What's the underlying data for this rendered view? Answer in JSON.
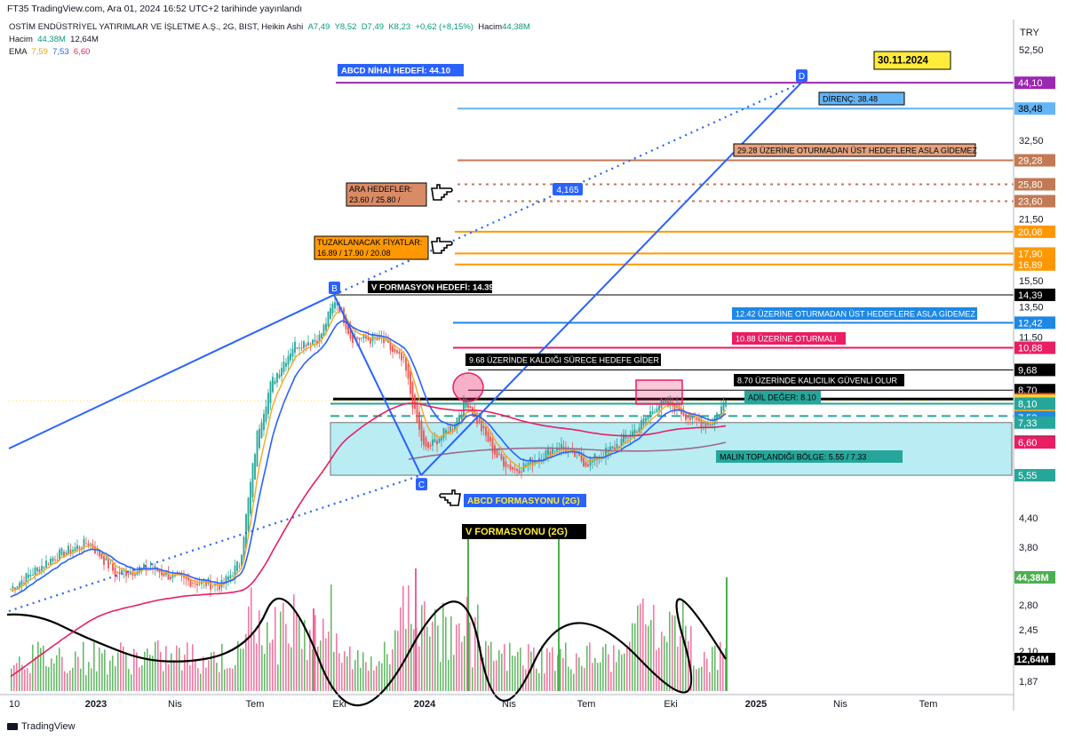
{
  "header": {
    "published": "FT35 TradingView.com, Ara 01, 2024 16:52 UTC+2 tarihinde yayınlandı",
    "currency": "TRY"
  },
  "legend": {
    "symbol": "OSTİM ENDÜSTRİYEL YATIRIMLAR VE İŞLETME A.Ş., 2G, BIST, Heikin Ashi",
    "open": "A7,49",
    "high": "Y8,52",
    "low": "D7,49",
    "close": "K8,23",
    "change": "+0,62 (+8,15%)",
    "volume_label": "Hacim",
    "volume_value": "44,38M",
    "vol_row_label": "Hacim",
    "vol_row_v1": "44,38M",
    "vol_row_v2": "12,64M",
    "ema_label": "EMA",
    "ema_v1": "7,59",
    "ema_v2": "7,53",
    "ema_v3": "6,60"
  },
  "footer": {
    "brand": "TradingView"
  },
  "chart_data": {
    "type": "candlestick",
    "style": "heikin-ashi",
    "scale": "log",
    "ylim": [
      1.8,
      56
    ],
    "y_ticks": [
      "52,50",
      "44,10",
      "38,48",
      "32,50",
      "29,28",
      "25,80",
      "23,60",
      "21,50",
      "20,08",
      "17,90",
      "16,89",
      "15,50",
      "14,39",
      "13,50",
      "12,42",
      "11,50",
      "10,88",
      "9,68",
      "8,70",
      "8,30",
      "8,23",
      "8,10",
      "7,59",
      "7,53",
      "7,33",
      "6,62",
      "6,60",
      "5,55",
      "4,40",
      "3,80",
      "2,80",
      "2,45",
      "2,10",
      "1,87"
    ],
    "x_ticks": [
      "10",
      "2023",
      "Nis",
      "Tem",
      "Eki",
      "2024",
      "Nis",
      "Tem",
      "Eki",
      "2025",
      "Nis",
      "Tem"
    ],
    "price_tags": [
      {
        "label": "44,10",
        "color": "#9c27b0"
      },
      {
        "label": "38,48",
        "color": "#64b5f6"
      },
      {
        "label": "29,28",
        "color": "#c27a55"
      },
      {
        "label": "25,80",
        "color": "#c27a55"
      },
      {
        "label": "23,60",
        "color": "#c27a55"
      },
      {
        "label": "20,08",
        "color": "#ff9800"
      },
      {
        "label": "17,90",
        "color": "#ff9800"
      },
      {
        "label": "16,89",
        "color": "#ff9800"
      },
      {
        "label": "14,39",
        "color": "#000000"
      },
      {
        "label": "12,42",
        "color": "#1e88e5"
      },
      {
        "label": "10,88",
        "color": "#e91e63"
      },
      {
        "label": "9,68",
        "color": "#000000"
      },
      {
        "label": "8,70",
        "color": "#000000"
      },
      {
        "label": "8,30",
        "color": "#e53935"
      },
      {
        "label": "8,23",
        "color": "#fdd835"
      },
      {
        "label": "8,10",
        "color": "#26a69a"
      },
      {
        "label": "7,59",
        "color": "#f5a623"
      },
      {
        "label": "7,53",
        "color": "#1e88e5"
      },
      {
        "label": "7,33",
        "color": "#26a69a"
      },
      {
        "label": "6,62",
        "color": "#000000"
      },
      {
        "label": "6,60",
        "color": "#e91e63"
      },
      {
        "label": "5,55",
        "color": "#26a69a"
      },
      {
        "label": "44,38M",
        "color": "#4caf50"
      },
      {
        "label": "12,64M",
        "color": "#000000"
      }
    ],
    "levels": [
      {
        "value": 44.1,
        "color": "#9c27b0",
        "style": "solid"
      },
      {
        "value": 38.48,
        "color": "#64b5f6",
        "style": "solid"
      },
      {
        "value": 29.28,
        "color": "#c27a55",
        "style": "solid"
      },
      {
        "value": 25.8,
        "color": "#c27a55",
        "style": "dotted"
      },
      {
        "value": 23.6,
        "color": "#c27a55",
        "style": "dotted"
      },
      {
        "value": 20.08,
        "color": "#ff9800",
        "style": "solid"
      },
      {
        "value": 17.9,
        "color": "#ff9800",
        "style": "solid"
      },
      {
        "value": 16.89,
        "color": "#ff9800",
        "style": "solid"
      },
      {
        "value": 14.39,
        "color": "#000000",
        "style": "thin"
      },
      {
        "value": 12.42,
        "color": "#1e88e5",
        "style": "solid"
      },
      {
        "value": 10.88,
        "color": "#e91e63",
        "style": "solid"
      },
      {
        "value": 9.68,
        "color": "#000000",
        "style": "thin"
      },
      {
        "value": 8.7,
        "color": "#000000",
        "style": "thin"
      },
      {
        "value": 8.3,
        "color": "#000000",
        "style": "thick"
      },
      {
        "value": 8.1,
        "color": "#26a69a",
        "style": "solid"
      },
      {
        "value": 7.59,
        "color": "#26a69a",
        "style": "dashed"
      }
    ],
    "zone": {
      "low": 5.55,
      "high": 7.33,
      "label": "MALIN TOPLANDIĞI BÖLGE: 5.55 / 7.33"
    },
    "pattern_points": [
      {
        "label": "B",
        "price": 14.39
      },
      {
        "label": "C",
        "price": 5.55
      },
      {
        "label": "D",
        "price": 44.1
      }
    ],
    "pattern_value": "4,165",
    "annotations": {
      "abcd_target": "ABCD NİHAİ HEDEFİ: 44.10",
      "date_box": "30.11.2024",
      "resistance": "DİRENÇ: 38.48",
      "above_2928": "29.28 ÜZERİNE OTURMADAN ÜST HEDEFLERE ASLA GİDEMEZ",
      "ara_line1": "ARA HEDEFLER:",
      "ara_line2": "23.60 / 25.80 /",
      "tuz_line1": "TUZAKLANACAK FİYATLAR:",
      "tuz_line2": "16.89 / 17.90 / 20.08",
      "v_target": "V FORMASYON HEDEFİ: 14.39",
      "above_1242": "12.42 ÜZERİNE OTURMADAN ÜST HEDEFLERE ASLA GİDEMEZ",
      "above_1088": "10.88 ÜZERİNE OTURMALI",
      "above_968": "9.68 ÜZERİNDE KALDIĞI SÜRECE HEDEFE GİDER",
      "above_870": "8.70 ÜZERİNDE KALICILIK GÜVENLİ OLUR",
      "fair_value": "ADİL DEĞER: 8.10",
      "abcd_form": "ABCD FORMASYONU (2G)",
      "v_form": "V FORMASYONU (2G)"
    },
    "last_close": 8.23,
    "ema_values": [
      7.59,
      7.53,
      6.6
    ],
    "volume_last": "44,38M",
    "volume_avg": "12,64M"
  }
}
